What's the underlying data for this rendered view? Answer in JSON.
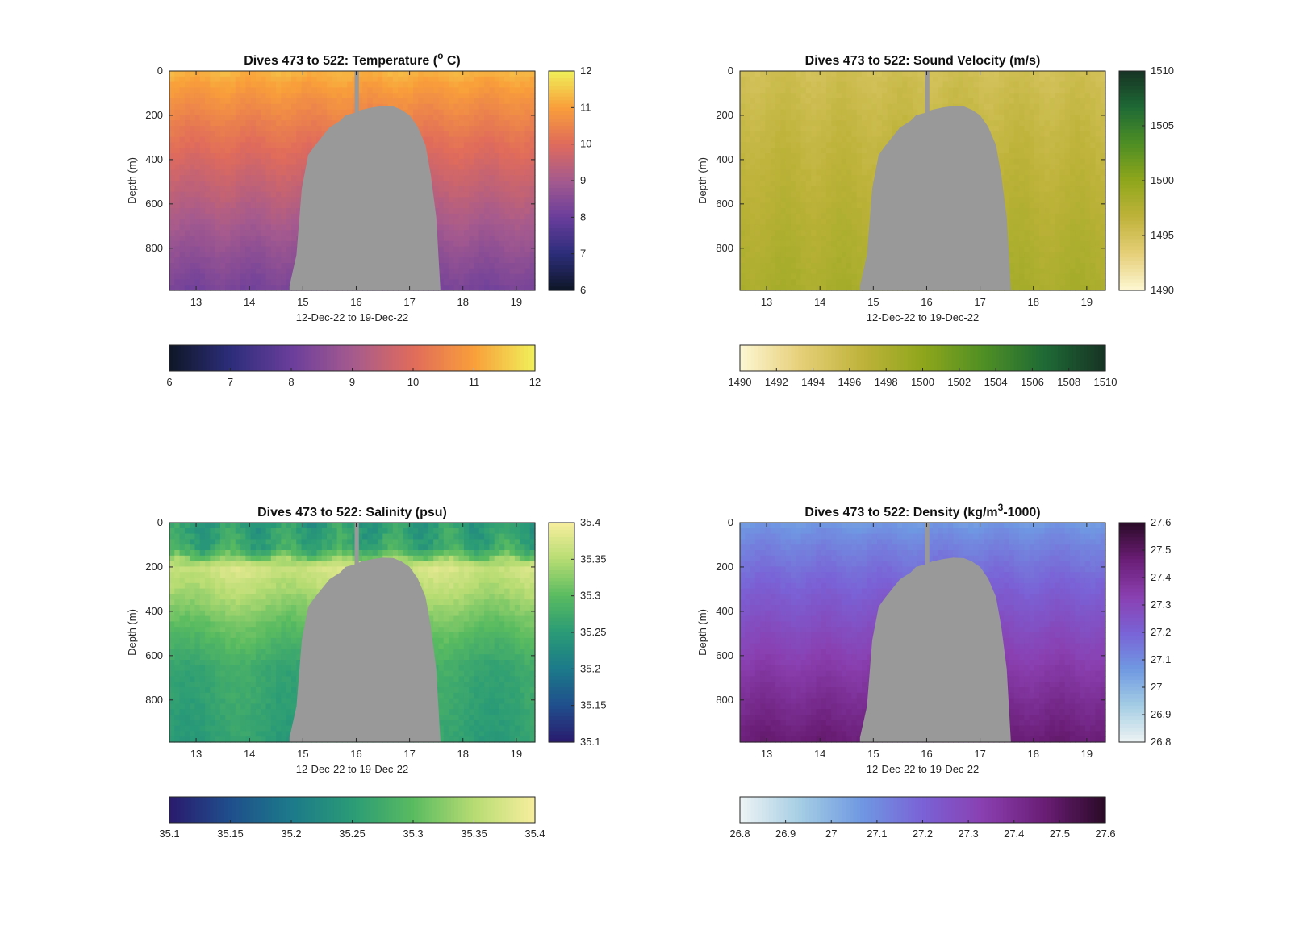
{
  "chart_data": [
    {
      "type": "heatmap",
      "title": "Dives 473 to 522: Temperature (",
      "title_symbol": "o",
      "title_suffix": " C)",
      "xlabel": "12-Dec-22 to 19-Dec-22",
      "ylabel": "Depth (m)",
      "xlim": [
        12.5,
        19.35
      ],
      "ylim": [
        0,
        990
      ],
      "y_reversed": true,
      "x_ticks": [
        "13",
        "14",
        "15",
        "16",
        "17",
        "18",
        "19"
      ],
      "y_ticks": [
        "0",
        "200",
        "400",
        "600",
        "800"
      ],
      "colorbar_range": [
        6,
        12
      ],
      "colorbar_side_ticks": [
        "6",
        "7",
        "8",
        "9",
        "10",
        "11",
        "12"
      ],
      "colorbar_bottom_ticks": [
        "6",
        "7",
        "8",
        "9",
        "10",
        "11",
        "12"
      ],
      "colormap": [
        "#0e1727",
        "#2c2d7a",
        "#6a3e9c",
        "#a55a8e",
        "#e06b5b",
        "#f99f3a",
        "#f0f05a"
      ],
      "surface_value": 11.3,
      "deep_value": 8.2,
      "gap_color": "#999999",
      "gap_profile": [
        [
          14.75,
          970
        ],
        [
          14.88,
          830
        ],
        [
          14.98,
          530
        ],
        [
          15.1,
          380
        ],
        [
          15.2,
          345
        ],
        [
          15.3,
          315
        ],
        [
          15.4,
          285
        ],
        [
          15.5,
          255
        ],
        [
          15.6,
          240
        ],
        [
          15.7,
          225
        ],
        [
          15.8,
          200
        ],
        [
          15.95,
          190
        ],
        [
          16.1,
          175
        ],
        [
          16.3,
          165
        ],
        [
          16.5,
          158
        ],
        [
          16.7,
          160
        ],
        [
          16.85,
          175
        ],
        [
          17.0,
          200
        ],
        [
          17.15,
          250
        ],
        [
          17.3,
          335
        ],
        [
          17.4,
          470
        ],
        [
          17.5,
          660
        ],
        [
          17.58,
          990
        ]
      ],
      "gap_pole": [
        15.97,
        16.05
      ]
    },
    {
      "type": "heatmap",
      "title": "Dives 473 to 522: Sound Velocity (m/s)",
      "xlabel": "12-Dec-22 to 19-Dec-22",
      "ylabel": "Depth (m)",
      "xlim": [
        12.5,
        19.35
      ],
      "ylim": [
        0,
        990
      ],
      "y_reversed": true,
      "x_ticks": [
        "13",
        "14",
        "15",
        "16",
        "17",
        "18",
        "19"
      ],
      "y_ticks": [
        "0",
        "200",
        "400",
        "600",
        "800"
      ],
      "colorbar_range": [
        1490,
        1510
      ],
      "colorbar_side_ticks": [
        "1490",
        "1495",
        "1500",
        "1505",
        "1510"
      ],
      "colorbar_bottom_ticks": [
        "1490",
        "1492",
        "1494",
        "1496",
        "1498",
        "1500",
        "1502",
        "1504",
        "1506",
        "1508",
        "1510"
      ],
      "colormap": [
        "#fdf7d3",
        "#e6cf78",
        "#bfb33b",
        "#8fa61b",
        "#4f8f24",
        "#1e6a35",
        "#173324"
      ],
      "surface_value": 1495.2,
      "deep_value": 1498.2,
      "gap_color": "#999999",
      "gap_profile": [
        [
          14.75,
          970
        ],
        [
          14.88,
          830
        ],
        [
          14.98,
          530
        ],
        [
          15.1,
          380
        ],
        [
          15.2,
          345
        ],
        [
          15.3,
          315
        ],
        [
          15.4,
          285
        ],
        [
          15.5,
          255
        ],
        [
          15.6,
          240
        ],
        [
          15.7,
          225
        ],
        [
          15.8,
          200
        ],
        [
          15.95,
          190
        ],
        [
          16.1,
          175
        ],
        [
          16.3,
          165
        ],
        [
          16.5,
          158
        ],
        [
          16.7,
          160
        ],
        [
          16.85,
          175
        ],
        [
          17.0,
          200
        ],
        [
          17.15,
          250
        ],
        [
          17.3,
          335
        ],
        [
          17.4,
          470
        ],
        [
          17.5,
          660
        ],
        [
          17.58,
          990
        ]
      ],
      "gap_pole": [
        15.97,
        16.05
      ]
    },
    {
      "type": "heatmap",
      "title": "Dives 473 to 522: Salinity (psu)",
      "xlabel": "12-Dec-22 to 19-Dec-22",
      "ylabel": "Depth (m)",
      "xlim": [
        12.5,
        19.35
      ],
      "ylim": [
        0,
        990
      ],
      "y_reversed": true,
      "x_ticks": [
        "13",
        "14",
        "15",
        "16",
        "17",
        "18",
        "19"
      ],
      "y_ticks": [
        "0",
        "200",
        "400",
        "600",
        "800"
      ],
      "colorbar_range": [
        35.1,
        35.4
      ],
      "colorbar_side_ticks": [
        "35.1",
        "35.15",
        "35.2",
        "35.25",
        "35.3",
        "35.35",
        "35.4"
      ],
      "colorbar_bottom_ticks": [
        "35.1",
        "35.15",
        "35.2",
        "35.25",
        "35.3",
        "35.35",
        "35.4"
      ],
      "colormap": [
        "#2a1a6e",
        "#1f4f8c",
        "#1c7a8a",
        "#2a9b76",
        "#59bb60",
        "#b7dc73",
        "#f7ee9d"
      ],
      "salinity_profile": [
        [
          0,
          35.25
        ],
        [
          120,
          35.27
        ],
        [
          200,
          35.37
        ],
        [
          300,
          35.35
        ],
        [
          450,
          35.31
        ],
        [
          650,
          35.27
        ],
        [
          990,
          35.255
        ]
      ],
      "gap_color": "#999999",
      "gap_profile": [
        [
          14.75,
          970
        ],
        [
          14.88,
          830
        ],
        [
          14.98,
          530
        ],
        [
          15.1,
          380
        ],
        [
          15.2,
          345
        ],
        [
          15.3,
          315
        ],
        [
          15.4,
          285
        ],
        [
          15.5,
          255
        ],
        [
          15.6,
          240
        ],
        [
          15.7,
          225
        ],
        [
          15.8,
          200
        ],
        [
          15.95,
          190
        ],
        [
          16.1,
          175
        ],
        [
          16.3,
          165
        ],
        [
          16.5,
          158
        ],
        [
          16.7,
          160
        ],
        [
          16.85,
          175
        ],
        [
          17.0,
          200
        ],
        [
          17.15,
          250
        ],
        [
          17.3,
          335
        ],
        [
          17.4,
          470
        ],
        [
          17.5,
          660
        ],
        [
          17.58,
          990
        ]
      ],
      "gap_pole": [
        15.97,
        16.05
      ]
    },
    {
      "type": "heatmap",
      "title": "Dives 473 to 522: Density (kg/m",
      "title_symbol": "3",
      "title_suffix": "-1000)",
      "xlabel": "12-Dec-22 to 19-Dec-22",
      "ylabel": "Depth (m)",
      "xlim": [
        12.5,
        19.35
      ],
      "ylim": [
        0,
        990
      ],
      "y_reversed": true,
      "x_ticks": [
        "13",
        "14",
        "15",
        "16",
        "17",
        "18",
        "19"
      ],
      "y_ticks": [
        "0",
        "200",
        "400",
        "600",
        "800"
      ],
      "colorbar_range": [
        26.8,
        27.6
      ],
      "colorbar_side_ticks": [
        "26.8",
        "26.9",
        "27",
        "27.1",
        "27.2",
        "27.3",
        "27.4",
        "27.5",
        "27.6"
      ],
      "colorbar_bottom_ticks": [
        "26.8",
        "26.9",
        "27",
        "27.1",
        "27.2",
        "27.3",
        "27.4",
        "27.5",
        "27.6"
      ],
      "colormap": [
        "#eef4f4",
        "#a4cde4",
        "#6f98e2",
        "#7a62d6",
        "#8a3fb0",
        "#6a1d75",
        "#2a0a26"
      ],
      "surface_value": 27.06,
      "deep_value": 27.47,
      "gap_color": "#999999",
      "gap_profile": [
        [
          14.75,
          970
        ],
        [
          14.88,
          830
        ],
        [
          14.98,
          530
        ],
        [
          15.1,
          380
        ],
        [
          15.2,
          345
        ],
        [
          15.3,
          315
        ],
        [
          15.4,
          285
        ],
        [
          15.5,
          255
        ],
        [
          15.6,
          240
        ],
        [
          15.7,
          225
        ],
        [
          15.8,
          200
        ],
        [
          15.95,
          190
        ],
        [
          16.1,
          175
        ],
        [
          16.3,
          165
        ],
        [
          16.5,
          158
        ],
        [
          16.7,
          160
        ],
        [
          16.85,
          175
        ],
        [
          17.0,
          200
        ],
        [
          17.15,
          250
        ],
        [
          17.3,
          335
        ],
        [
          17.4,
          470
        ],
        [
          17.5,
          660
        ],
        [
          17.58,
          990
        ]
      ],
      "gap_pole": [
        15.97,
        16.05
      ]
    }
  ]
}
